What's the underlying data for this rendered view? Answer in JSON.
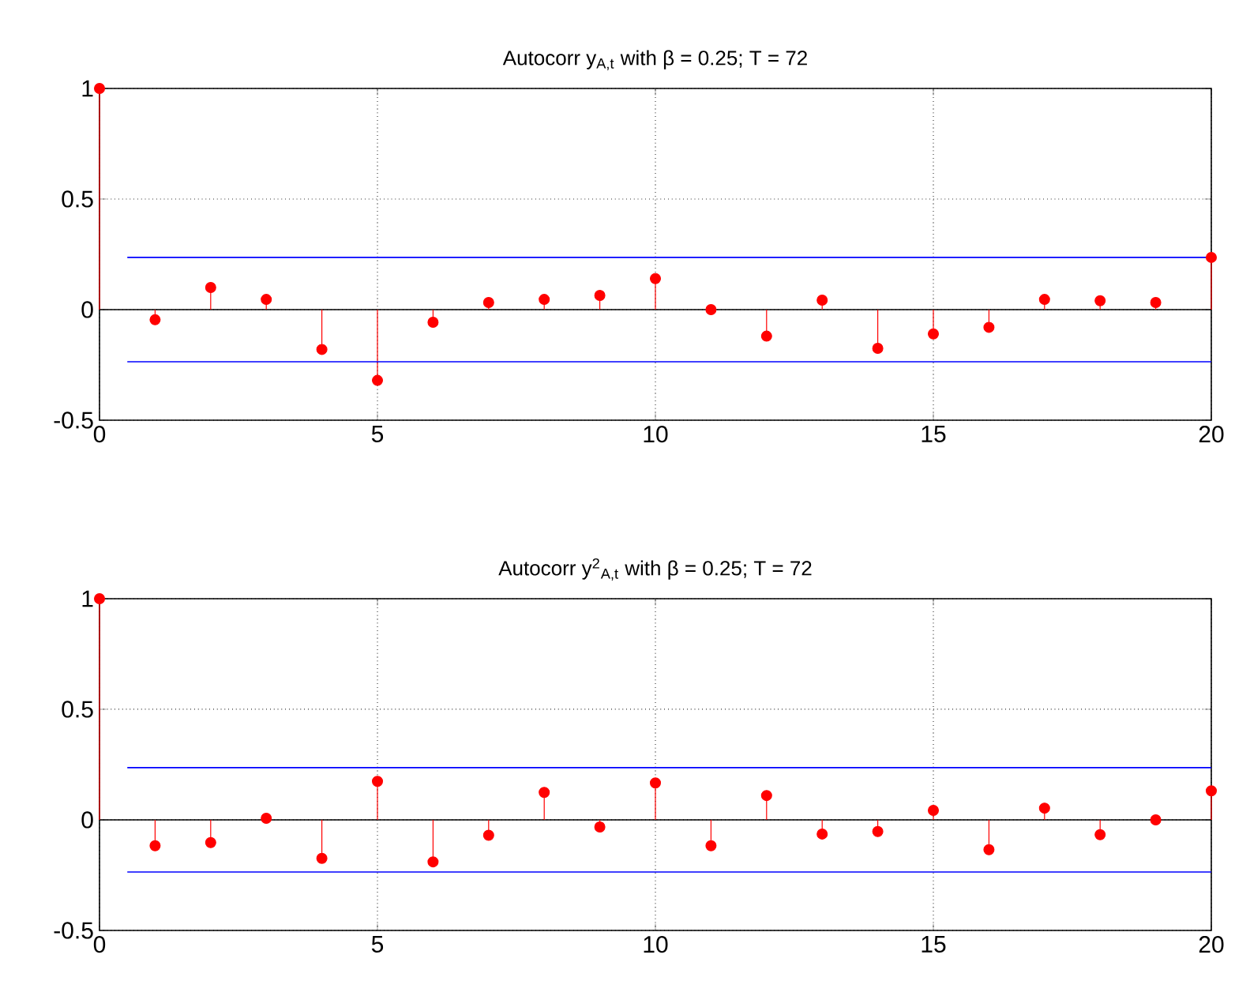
{
  "chart_data": [
    {
      "type": "lollipop",
      "title": "Autocorr y$_{A,t}$ with β = 0.25; T = 72",
      "xlim": [
        0,
        20
      ],
      "ylim": [
        -0.5,
        1
      ],
      "xticks": [
        0,
        5,
        10,
        15,
        20
      ],
      "yticks": [
        -0.5,
        0,
        0.5,
        1
      ],
      "grid": true,
      "ref_lines": [
        {
          "axis": "y",
          "value": 0,
          "color": "#000000"
        }
      ],
      "series": [
        {
          "color": "#ff0000",
          "marker": "circle",
          "x": [
            0,
            1,
            2,
            3,
            4,
            5,
            6,
            7,
            8,
            9,
            10,
            11,
            12,
            13,
            14,
            15,
            16,
            17,
            18,
            19,
            20
          ],
          "values": [
            1,
            -0.046,
            0.1,
            0.046,
            -0.18,
            -0.32,
            -0.057,
            0.032,
            0.046,
            0.064,
            0.14,
            0,
            -0.12,
            0.043,
            -0.175,
            -0.11,
            -0.08,
            0.046,
            0.04,
            0.032,
            0.236
          ]
        },
        {
          "type": "line",
          "color": "#0000ff",
          "x": [
            0.5,
            20
          ],
          "values": [
            0.236,
            0.236
          ]
        },
        {
          "type": "line",
          "color": "#0000ff",
          "x": [
            0.5,
            20
          ],
          "values": [
            -0.236,
            -0.236
          ]
        }
      ]
    },
    {
      "type": "lollipop",
      "title": "Autocorr y$^{2}$$_{A,t}$ with β = 0.25; T = 72",
      "xlim": [
        0,
        20
      ],
      "ylim": [
        -0.5,
        1
      ],
      "xticks": [
        0,
        5,
        10,
        15,
        20
      ],
      "yticks": [
        -0.5,
        0,
        0.5,
        1
      ],
      "grid": true,
      "ref_lines": [
        {
          "axis": "y",
          "value": 0,
          "color": "#000000"
        }
      ],
      "series": [
        {
          "color": "#ff0000",
          "marker": "circle",
          "x": [
            0,
            1,
            2,
            3,
            4,
            5,
            6,
            7,
            8,
            9,
            10,
            11,
            12,
            13,
            14,
            15,
            16,
            17,
            18,
            19,
            20
          ],
          "values": [
            1,
            -0.117,
            -0.103,
            0.007,
            -0.174,
            0.174,
            -0.19,
            -0.07,
            0.124,
            -0.032,
            0.167,
            -0.117,
            0.11,
            -0.064,
            -0.053,
            0.043,
            -0.135,
            0.053,
            -0.067,
            0,
            0.131
          ]
        },
        {
          "type": "line",
          "color": "#0000ff",
          "x": [
            0.5,
            20
          ],
          "values": [
            0.236,
            0.236
          ]
        },
        {
          "type": "line",
          "color": "#0000ff",
          "x": [
            0.5,
            20
          ],
          "values": [
            -0.236,
            -0.236
          ]
        }
      ]
    }
  ]
}
